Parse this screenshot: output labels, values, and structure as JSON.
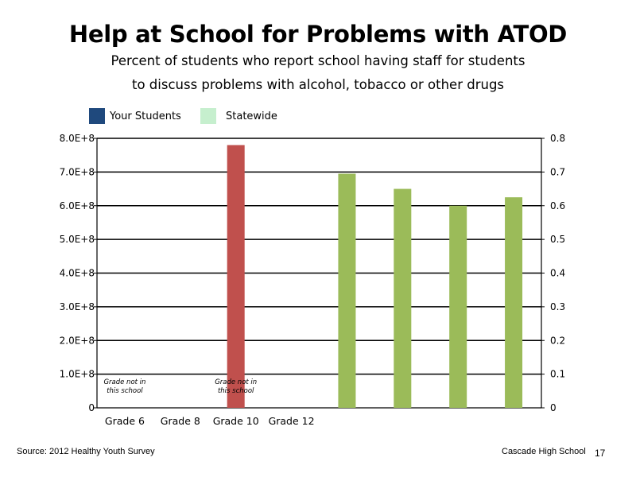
{
  "chart_data": {
    "type": "bar",
    "title": "Help at School for Problems with ATOD",
    "subtitle_lines": [
      "Percent of students who report school having staff for students",
      "to discuss problems with alcohol, tobacco or other drugs"
    ],
    "legend": [
      {
        "name": "Your Students",
        "color": "#1f497d"
      },
      {
        "name": "Statewide",
        "color": "#c6efce"
      }
    ],
    "categories": [
      "Grade 6",
      "Grade 8",
      "Grade 10",
      "Grade 12"
    ],
    "left_axis": {
      "ylim": [
        0,
        800000000
      ],
      "tick_labels": [
        "0",
        "1.0E+8",
        "2.0E+8",
        "3.0E+8",
        "4.0E+8",
        "5.0E+8",
        "6.0E+8",
        "7.0E+8",
        "8.0E+8"
      ]
    },
    "right_axis": {
      "ylim": [
        0,
        0.8
      ],
      "tick_labels": [
        "0",
        "0.1",
        "0.2",
        "0.3",
        "0.4",
        "0.5",
        "0.6",
        "0.7",
        "0.8"
      ]
    },
    "grid": true,
    "bars": [
      {
        "axis": "left",
        "value": 780000000,
        "color": "#c0504d"
      },
      {
        "axis": "right",
        "value": 0.695,
        "color": "#9bbb59"
      },
      {
        "axis": "right",
        "value": 0.65,
        "color": "#9bbb59"
      },
      {
        "axis": "right",
        "value": 0.6,
        "color": "#9bbb59"
      },
      {
        "axis": "right",
        "value": 0.625,
        "color": "#9bbb59"
      }
    ],
    "annotations": [
      {
        "category": "Grade 6",
        "lines": [
          "Grade not in",
          "this school"
        ]
      },
      {
        "category": "Grade 10",
        "lines": [
          "Grade not in",
          "this school"
        ]
      }
    ]
  },
  "footer": {
    "source": "Source: 2012 Healthy Youth Survey",
    "school": "Cascade High School",
    "page": "17"
  }
}
